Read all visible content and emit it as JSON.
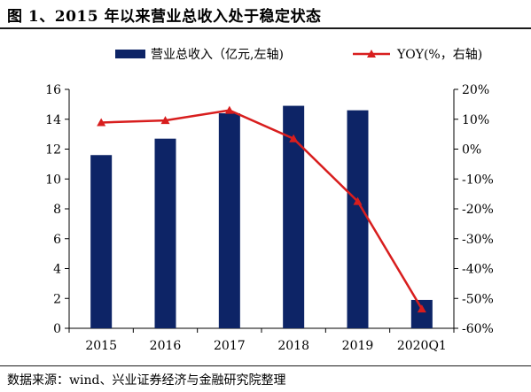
{
  "title": "图 1、2015 年以来营业总收入处于稳定状态",
  "source": "数据来源：wind、兴业证券经济与金融研究院整理",
  "colors": {
    "bar": "#0d2466",
    "line": "#d81e1e",
    "axis": "#000000"
  },
  "chart_data": {
    "type": "bar",
    "categories": [
      "2015",
      "2016",
      "2017",
      "2018",
      "2019",
      "2020Q1"
    ],
    "series": [
      {
        "name": "营业总收入（亿元,左轴)",
        "type": "bar",
        "axis": "left",
        "values": [
          11.6,
          12.7,
          14.4,
          14.9,
          14.6,
          1.9
        ]
      },
      {
        "name": "YOY(%，右轴)",
        "type": "line",
        "axis": "right",
        "marker": "triangle",
        "values": [
          8.9,
          9.6,
          13.0,
          3.5,
          -17.5,
          -53.5
        ]
      }
    ],
    "ylim_left": [
      0,
      16
    ],
    "yticks_left": [
      "0",
      "2",
      "4",
      "6",
      "8",
      "10",
      "12",
      "14",
      "16"
    ],
    "ylim_right": [
      -60,
      20
    ],
    "yticks_right": [
      "-60%",
      "-50%",
      "-40%",
      "-30%",
      "-20%",
      "-10%",
      "0%",
      "10%",
      "20%"
    ],
    "legend_position": "top",
    "grid": false
  }
}
